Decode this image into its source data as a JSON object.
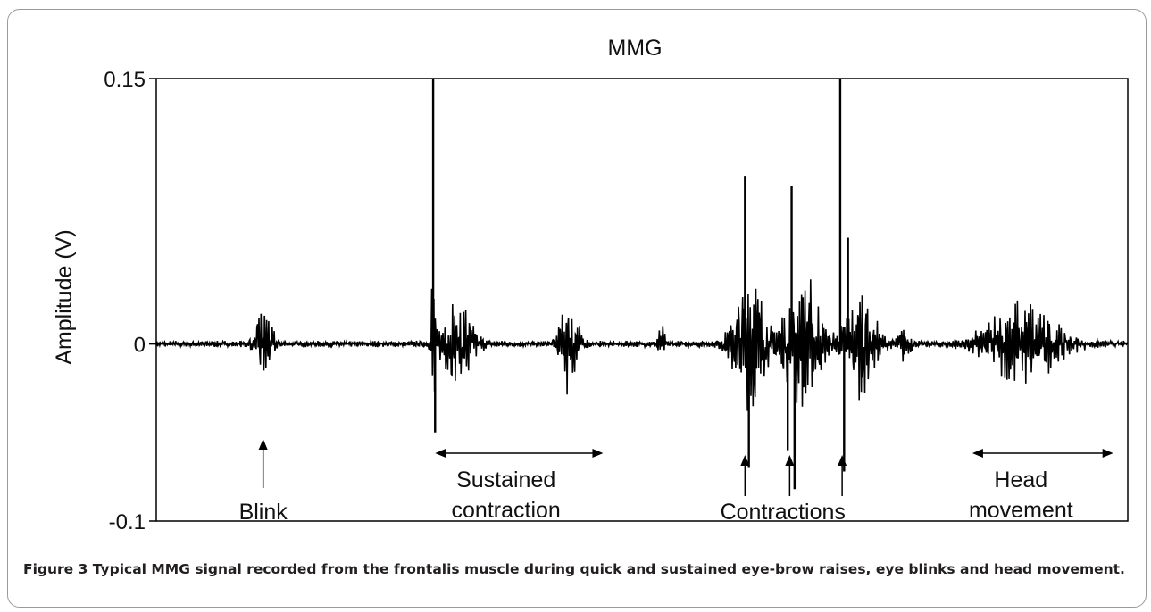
{
  "chart_data": {
    "type": "line",
    "title": "MMG",
    "xlabel": "",
    "ylabel": "Amplitude (V)",
    "ylim": [
      -0.1,
      0.15
    ],
    "yticks": [
      {
        "value": 0.15,
        "label": "0.15"
      },
      {
        "value": 0,
        "label": "0"
      },
      {
        "value": -0.1,
        "label": "-0.1"
      }
    ],
    "grid": false,
    "legend": "none",
    "line_color": "#000000",
    "x_extent": [
      0,
      1
    ],
    "bursts": [
      {
        "center": 0.11,
        "width": 0.03,
        "amp": 0.022
      },
      {
        "center": 0.285,
        "width": 0.006,
        "amp": 0.06
      },
      {
        "center": 0.31,
        "width": 0.05,
        "amp": 0.028
      },
      {
        "center": 0.425,
        "width": 0.03,
        "amp": 0.03
      },
      {
        "center": 0.52,
        "width": 0.01,
        "amp": 0.014
      },
      {
        "center": 0.61,
        "width": 0.05,
        "amp": 0.045
      },
      {
        "center": 0.665,
        "width": 0.06,
        "amp": 0.045
      },
      {
        "center": 0.725,
        "width": 0.05,
        "amp": 0.035
      },
      {
        "center": 0.77,
        "width": 0.02,
        "amp": 0.012
      },
      {
        "center": 0.89,
        "width": 0.12,
        "amp": 0.025
      }
    ],
    "spikes": [
      {
        "x": 0.285,
        "y": 0.15
      },
      {
        "x": 0.287,
        "y": -0.05
      },
      {
        "x": 0.606,
        "y": 0.095
      },
      {
        "x": 0.61,
        "y": -0.07
      },
      {
        "x": 0.654,
        "y": 0.089
      },
      {
        "x": 0.65,
        "y": -0.06
      },
      {
        "x": 0.657,
        "y": -0.082
      },
      {
        "x": 0.704,
        "y": 0.15
      },
      {
        "x": 0.708,
        "y": -0.072
      },
      {
        "x": 0.712,
        "y": 0.06
      }
    ],
    "annotations": [
      {
        "lines": [
          "Blink"
        ],
        "x": 0.11,
        "arrow": "up"
      },
      {
        "lines": [
          "Sustained",
          "contraction"
        ],
        "x": 0.36,
        "arrow": "range",
        "x_from": 0.287,
        "x_to": 0.46
      },
      {
        "lines": [
          "Contractions"
        ],
        "x": 0.645,
        "arrow": "multi-up",
        "arrow_x": [
          0.606,
          0.652,
          0.706
        ]
      },
      {
        "lines": [
          "Head",
          "movement"
        ],
        "x": 0.89,
        "arrow": "range",
        "x_from": 0.84,
        "x_to": 0.985
      }
    ]
  },
  "caption": {
    "label": "Figure 3",
    "text": " Typical MMG signal recorded from the frontalis muscle during quick and sustained eye-brow raises, eye blinks and head movement."
  }
}
